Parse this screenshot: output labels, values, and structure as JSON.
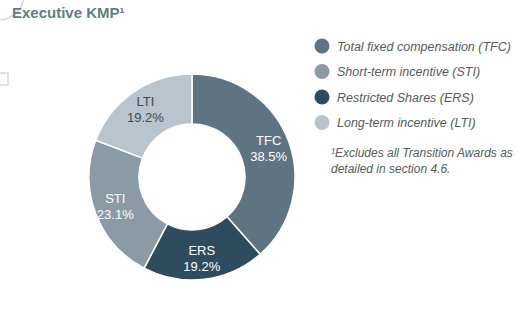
{
  "chart_data": {
    "type": "pie",
    "title": "Executive KMP¹",
    "categories": [
      "TFC",
      "ERS",
      "STI",
      "LTI"
    ],
    "values": [
      38.5,
      19.2,
      23.1,
      19.2
    ],
    "value_labels": [
      "38.5%",
      "19.2%",
      "23.1%",
      "19.2%"
    ],
    "colors": [
      "#5f7482",
      "#2f4b5e",
      "#8b9ba6",
      "#b9c4cc"
    ],
    "data_labels": true,
    "legend": "right",
    "legend_items": [
      {
        "label": "Total fixed compensation (TFC)",
        "category": "TFC"
      },
      {
        "label": "Short-term incentive (STI)",
        "category": "STI"
      },
      {
        "label": "Restricted Shares (ERS)",
        "category": "ERS"
      },
      {
        "label": "Long-term incentive (LTI)",
        "category": "LTI"
      }
    ],
    "footnote": "¹Excludes all Transition Awards as detailed in section 4.6."
  }
}
